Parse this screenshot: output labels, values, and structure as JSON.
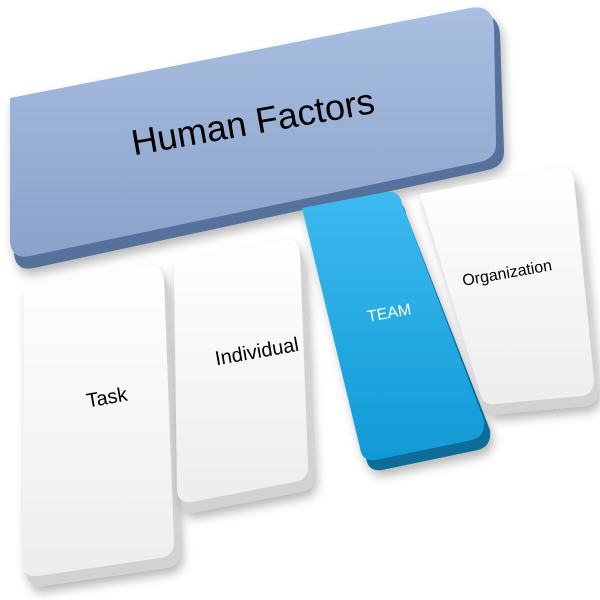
{
  "header": {
    "label": "Human Factors"
  },
  "boxes": [
    {
      "label": "Task"
    },
    {
      "label": "Individual"
    },
    {
      "label": "TEAM"
    },
    {
      "label": "Organization"
    }
  ],
  "colors": {
    "header_fill": "#8ea8cf",
    "header_shadow": "#4f6a94",
    "box_fill": "#f4f4f4",
    "box_shadow": "#cfcfcf",
    "team_fill": "#1aa7e0",
    "team_shadow": "#0a6b96",
    "team_text": "#ffffff"
  }
}
